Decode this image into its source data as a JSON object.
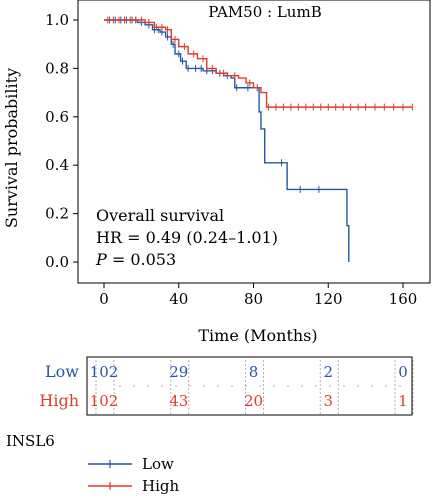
{
  "chart_data": {
    "type": "line",
    "subtype": "kaplan-meier",
    "title": "PAM50 : LumB",
    "xlabel": "Time (Months)",
    "ylabel": "Survival probability",
    "xlim": [
      0,
      168
    ],
    "ylim": [
      0,
      1.0
    ],
    "xticks": [
      0,
      40,
      80,
      120,
      160
    ],
    "yticks": [
      "0.0",
      "0.2",
      "0.4",
      "0.6",
      "0.8",
      "1.0"
    ],
    "grid": false,
    "annotations": {
      "line1": "Overall survival",
      "line2": "HR = 0.49 (0.24–1.01)",
      "p_label": "P",
      "p_value": " = 0.053"
    },
    "series": [
      {
        "name": "Low",
        "color": "#2457a6",
        "x": [
          0,
          18,
          22,
          26,
          30,
          33,
          36,
          38,
          41,
          44,
          48,
          50,
          53,
          56,
          60,
          64,
          68,
          70,
          74,
          80,
          83,
          84,
          86,
          90,
          98,
          108,
          120,
          128,
          130,
          131
        ],
        "y": [
          1.0,
          0.99,
          0.98,
          0.96,
          0.95,
          0.93,
          0.9,
          0.86,
          0.83,
          0.8,
          0.8,
          0.8,
          0.79,
          0.79,
          0.78,
          0.77,
          0.76,
          0.72,
          0.72,
          0.72,
          0.62,
          0.55,
          0.41,
          0.41,
          0.3,
          0.3,
          0.3,
          0.3,
          0.15,
          0.0
        ],
        "censor_x": [
          3,
          6,
          9,
          12,
          15,
          17,
          20,
          24,
          27,
          29,
          31,
          34,
          37,
          40,
          42,
          45,
          49,
          52,
          55,
          58,
          62,
          66,
          71,
          77,
          82,
          95,
          105,
          115
        ]
      },
      {
        "name": "High",
        "color": "#e03c2c",
        "x": [
          0,
          22,
          27,
          33,
          36,
          40,
          45,
          50,
          55,
          60,
          66,
          72,
          76,
          80,
          84,
          87,
          130,
          165
        ],
        "y": [
          1.0,
          0.99,
          0.97,
          0.96,
          0.92,
          0.89,
          0.86,
          0.84,
          0.8,
          0.78,
          0.77,
          0.76,
          0.74,
          0.72,
          0.7,
          0.64,
          0.64,
          0.64
        ],
        "censor_x": [
          2,
          5,
          8,
          11,
          14,
          17,
          20,
          24,
          28,
          31,
          34,
          38,
          43,
          48,
          53,
          58,
          64,
          70,
          78,
          88,
          92,
          96,
          100,
          104,
          108,
          112,
          116,
          120,
          124,
          128,
          132,
          136,
          140,
          145,
          150,
          155,
          160,
          165
        ]
      }
    ],
    "risk_table": {
      "times": [
        0,
        40,
        80,
        120,
        160
      ],
      "rows": [
        {
          "label": "Low",
          "color": "#2457a6",
          "counts": [
            "102",
            "29",
            "8",
            "2",
            "0"
          ]
        },
        {
          "label": "High",
          "color": "#e03c2c",
          "counts": [
            "102",
            "43",
            "20",
            "3",
            "1"
          ]
        }
      ]
    },
    "legend": {
      "title": "INSL6",
      "position": "bottom-left",
      "items": [
        {
          "label": "Low",
          "color": "#2457a6"
        },
        {
          "label": "High",
          "color": "#e03c2c"
        }
      ]
    }
  }
}
